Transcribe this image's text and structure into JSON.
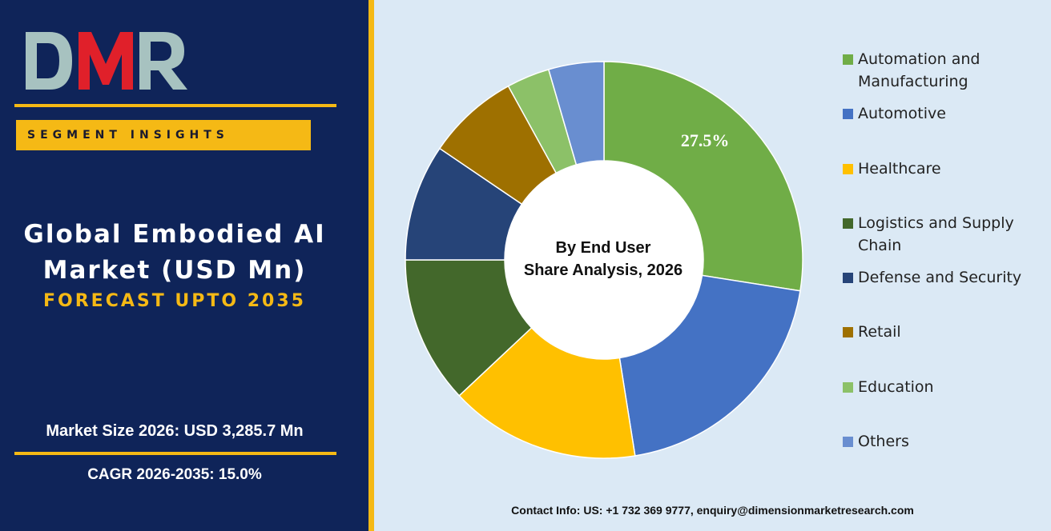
{
  "brand": {
    "logo_text": "DMR",
    "colors": {
      "navy": "#0f2459",
      "gold": "#f5b915",
      "red": "#e0202a",
      "teal": "#a7c2c0"
    }
  },
  "badge": {
    "label": "SEGMENT INSIGHTS"
  },
  "title": {
    "line1": "Global Embodied AI",
    "line2": "Market (USD Mn)",
    "forecast": "FORECAST UPTO 2035"
  },
  "stats": {
    "market_size": "Market Size 2026: USD 3,285.7 Mn",
    "cagr": "CAGR 2026-2035: 15.0%"
  },
  "chart_data": {
    "type": "pie",
    "variant": "donut",
    "center_label_line1": "By End User",
    "center_label_line2": "Share Analysis, 2026",
    "slices": [
      {
        "label": "Automation and Manufacturing",
        "value": 27.5,
        "color": "#70ad47",
        "data_label": "27.5%"
      },
      {
        "label": "Automotive",
        "value": 20.0,
        "color": "#4472c4"
      },
      {
        "label": "Healthcare",
        "value": 15.5,
        "color": "#ffc000"
      },
      {
        "label": "Logistics and Supply Chain",
        "value": 12.0,
        "color": "#43682b"
      },
      {
        "label": "Defense and Security",
        "value": 9.5,
        "color": "#264478"
      },
      {
        "label": "Retail",
        "value": 7.5,
        "color": "#9e7000"
      },
      {
        "label": "Education",
        "value": 3.5,
        "color": "#8cc168"
      },
      {
        "label": "Others",
        "value": 4.5,
        "color": "#698ed0"
      }
    ],
    "legend_position": "right"
  },
  "legend": {
    "items": [
      {
        "label": "Automation and Manufacturing",
        "color": "#70ad47"
      },
      {
        "label": "Automotive",
        "color": "#4472c4"
      },
      {
        "label": "Healthcare",
        "color": "#ffc000"
      },
      {
        "label": "Logistics and Supply Chain",
        "color": "#43682b"
      },
      {
        "label": "Defense and Security",
        "color": "#264478"
      },
      {
        "label": "Retail",
        "color": "#9e7000"
      },
      {
        "label": "Education",
        "color": "#8cc168"
      },
      {
        "label": "Others",
        "color": "#698ed0"
      }
    ]
  },
  "footer": {
    "contact": "Contact Info: US: +1 732 369 9777, enquiry@dimensionmarketresearch.com"
  }
}
